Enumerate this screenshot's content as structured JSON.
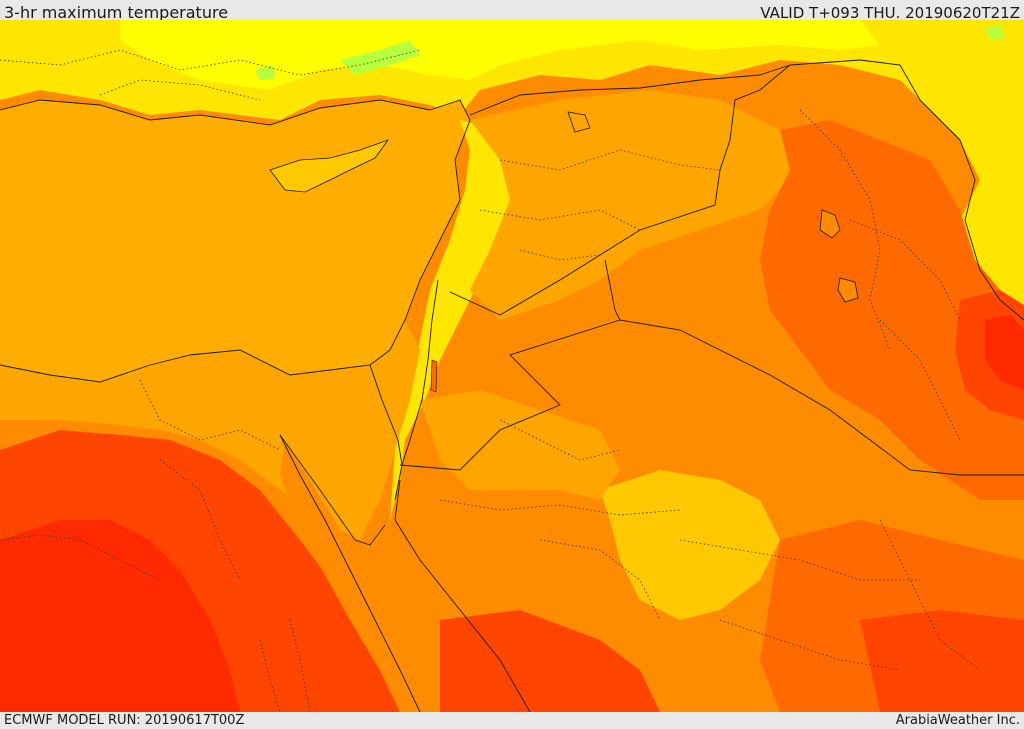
{
  "header": {
    "title": "3-hr maximum temperature",
    "valid": "VALID T+093 THU. 20190620T21Z"
  },
  "footer": {
    "model_run": "ECMWF MODEL RUN: 20190617T00Z",
    "credit": "ArabiaWeather Inc."
  },
  "palette": {
    "sea": "#ffad00",
    "yellow": "#ffff00",
    "light_yellow": "#ffe600",
    "gold": "#ffc800",
    "orange_light": "#ffa500",
    "orange": "#ff8c00",
    "orange_dark": "#ff6a00",
    "red_orange": "#ff4500",
    "red": "#ff2a00",
    "green": "#b8ff40",
    "border": "#1a1a1a"
  }
}
